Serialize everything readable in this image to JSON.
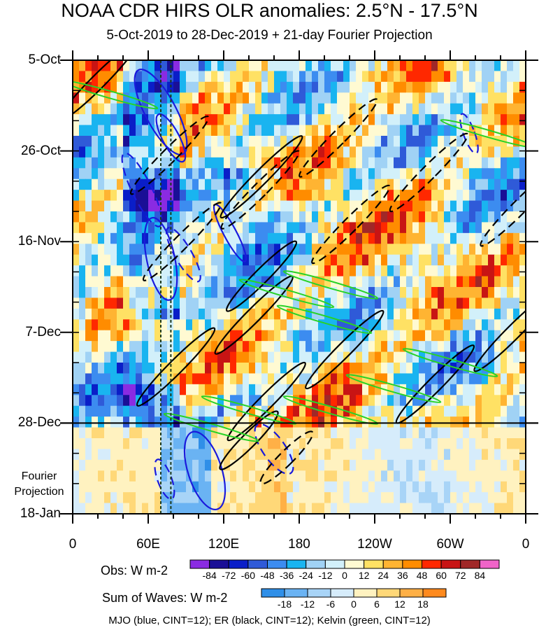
{
  "chart_data": {
    "type": "heatmap",
    "title": "NOAA CDR HIRS OLR anomalies: 2.5°N - 17.5°N",
    "subtitle": "5-Oct-2019 to 28-Dec-2019 + 21-day Fourier Projection",
    "x_axis": {
      "ticks": [
        "0",
        "60E",
        "120E",
        "180",
        "120W",
        "60W",
        "0"
      ],
      "lon_values": [
        0,
        60,
        120,
        180,
        240,
        300,
        360
      ],
      "range": [
        0,
        360
      ]
    },
    "y_axis": {
      "ticks": [
        "5-Oct",
        "26-Oct",
        "16-Nov",
        "7-Dec",
        "28-Dec",
        "18-Jan"
      ],
      "day_values": [
        0,
        21,
        42,
        63,
        84,
        105
      ],
      "range": [
        0,
        105
      ],
      "reversed": true
    },
    "projection_label": "Fourier Projection",
    "projection_start_day": 84,
    "reference_lines_lon": [
      70,
      78
    ],
    "obs_legend": {
      "label": "Obs: W m-2",
      "levels": [
        "-84",
        "-72",
        "-60",
        "-48",
        "-36",
        "-24",
        "-12",
        "0",
        "12",
        "24",
        "36",
        "48",
        "60",
        "72",
        "84"
      ],
      "colors": [
        "#8a2be2",
        "#1a0f96",
        "#0a1ec8",
        "#2f5ad8",
        "#3c8cf0",
        "#19b4f0",
        "#a0d2f5",
        "#d2f0fa",
        "#fffad2",
        "#ffe164",
        "#ffb432",
        "#ff8c00",
        "#ff2800",
        "#c81414",
        "#a02828",
        "#f064c8"
      ]
    },
    "waves_legend": {
      "label": "Sum of Waves: W m-2",
      "levels": [
        "-18",
        "-12",
        "-6",
        "0",
        "6",
        "12",
        "18"
      ],
      "colors": [
        "#2f8fe8",
        "#6ab3f3",
        "#a8d4f7",
        "#d6ecfb",
        "#fff2c0",
        "#ffd878",
        "#ffb046",
        "#ff8a1e"
      ]
    },
    "contours": [
      {
        "name": "MJO",
        "color": "#1a1adc"
      },
      {
        "name": "ER",
        "color": "#000000"
      },
      {
        "name": "Kelvin",
        "color": "#28d228"
      }
    ],
    "footer": "MJO (blue, CINT=12); ER (black, CINT=12); Kelvin (green, CINT=12)"
  }
}
